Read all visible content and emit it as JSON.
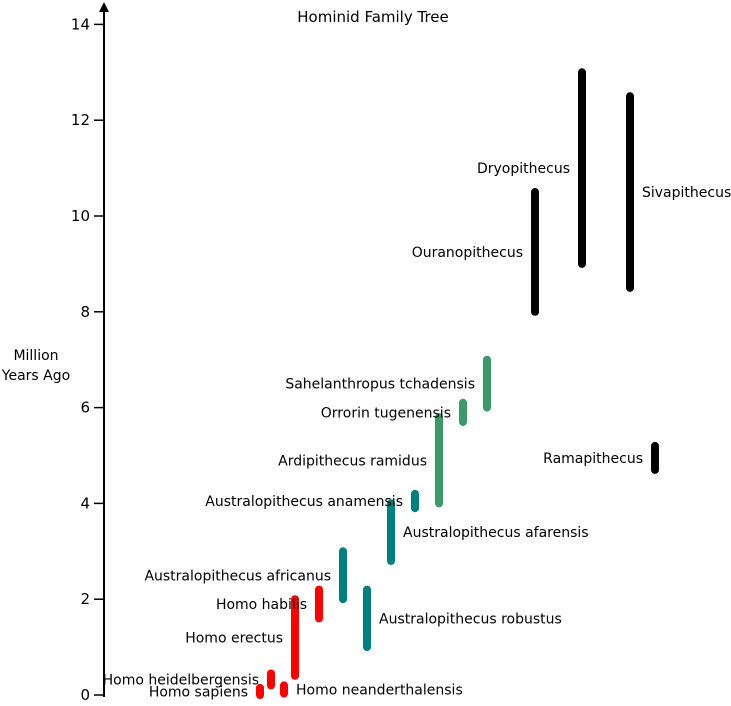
{
  "chart_data": {
    "type": "range-bar",
    "title": "Hominid Family Tree",
    "ylabel_lines": [
      "Million",
      "Years Ago"
    ],
    "ylim": [
      0,
      14
    ],
    "yticks": [
      0,
      2,
      4,
      6,
      8,
      10,
      12,
      14
    ],
    "colors": {
      "homo": "#ff0000",
      "australopithecus": "#008080",
      "early_hominin": "#3a9a6a",
      "ape": "#000000"
    },
    "series": [
      {
        "name": "Homo sapiens",
        "start": 0.15,
        "end": 0,
        "color_key": "homo",
        "label_side": "left"
      },
      {
        "name": "Homo heidelbergensis",
        "start": 0.45,
        "end": 0.2,
        "color_key": "homo",
        "label_side": "left"
      },
      {
        "name": "Homo neanderthalensis",
        "start": 0.2,
        "end": 0.03,
        "color_key": "homo",
        "label_side": "right"
      },
      {
        "name": "Homo erectus",
        "start": 2.0,
        "end": 0.4,
        "color_key": "homo",
        "label_side": "left"
      },
      {
        "name": "Homo habilis",
        "start": 2.2,
        "end": 1.6,
        "color_key": "homo",
        "label_side": "left"
      },
      {
        "name": "Australopithecus africanus",
        "start": 3.0,
        "end": 2.0,
        "color_key": "australopithecus",
        "label_side": "left"
      },
      {
        "name": "Australopithecus robustus",
        "start": 2.2,
        "end": 1.0,
        "color_key": "australopithecus",
        "label_side": "right"
      },
      {
        "name": "Australopithecus afarensis",
        "start": 4.0,
        "end": 2.8,
        "color_key": "australopithecus",
        "label_side": "right"
      },
      {
        "name": "Australopithecus anamensis",
        "start": 4.2,
        "end": 3.9,
        "color_key": "australopithecus",
        "label_side": "left"
      },
      {
        "name": "Ardipithecus ramidus",
        "start": 5.8,
        "end": 4.0,
        "color_key": "early_hominin",
        "label_side": "left"
      },
      {
        "name": "Orrorin tugenensis",
        "start": 6.1,
        "end": 5.7,
        "color_key": "early_hominin",
        "label_side": "left"
      },
      {
        "name": "Sahelanthropus tchadensis",
        "start": 7.0,
        "end": 6.0,
        "color_key": "early_hominin",
        "label_side": "left"
      },
      {
        "name": "Ouranopithecus",
        "start": 10.5,
        "end": 8.0,
        "color_key": "ape",
        "label_side": "left"
      },
      {
        "name": "Dryopithecus",
        "start": 13.0,
        "end": 9.0,
        "color_key": "ape",
        "label_side": "left"
      },
      {
        "name": "Sivapithecus",
        "start": 12.5,
        "end": 8.5,
        "color_key": "ape",
        "label_side": "right"
      },
      {
        "name": "Ramapithecus",
        "start": 5.2,
        "end": 4.7,
        "color_key": "ape",
        "label_side": "left"
      }
    ]
  }
}
